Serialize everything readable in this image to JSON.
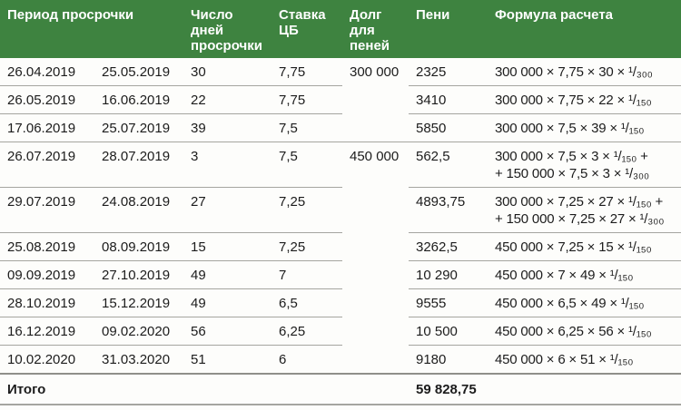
{
  "table": {
    "headers": {
      "period": "Период просрочки",
      "days": "Число\nдней\nпросрочки",
      "rate": "Ставка\nЦБ",
      "debt": "Долг\nдля\nпеней",
      "peni": "Пени",
      "formula": "Формула расчета"
    },
    "rows": [
      {
        "from": "26.04.2019",
        "to": "25.05.2019",
        "days": "30",
        "rate": "7,75",
        "debt": "300 000",
        "peni": "2325",
        "formula": "300 000 × 7,75 × 30 × ¹/₃₀₀"
      },
      {
        "from": "26.05.2019",
        "to": "16.06.2019",
        "days": "22",
        "rate": "7,75",
        "peni": "3410",
        "formula": "300 000 × 7,75 × 22 × ¹/₁₅₀"
      },
      {
        "from": "17.06.2019",
        "to": "25.07.2019",
        "days": "39",
        "rate": "7,5",
        "peni": "5850",
        "formula": "300 000 × 7,5 × 39 × ¹/₁₅₀"
      },
      {
        "from": "26.07.2019",
        "to": "28.07.2019",
        "days": "3",
        "rate": "7,5",
        "debt": "450 000",
        "peni": "562,5",
        "formula": "300 000 × 7,5 × 3 × ¹/₁₅₀ +\n+ 150 000 × 7,5 × 3 × ¹/₃₀₀"
      },
      {
        "from": "29.07.2019",
        "to": "24.08.2019",
        "days": "27",
        "rate": "7,25",
        "peni": "4893,75",
        "formula": "300 000 × 7,25 × 27 × ¹/₁₅₀ +\n+ 150 000 × 7,25 × 27 × ¹/₃₀₀"
      },
      {
        "from": "25.08.2019",
        "to": "08.09.2019",
        "days": "15",
        "rate": "7,25",
        "peni": "3262,5",
        "formula": "450 000 × 7,25 × 15 × ¹/₁₅₀"
      },
      {
        "from": "09.09.2019",
        "to": "27.10.2019",
        "days": "49",
        "rate": "7",
        "peni": "10 290",
        "formula": "450 000 × 7 × 49 × ¹/₁₅₀"
      },
      {
        "from": "28.10.2019",
        "to": "15.12.2019",
        "days": "49",
        "rate": "6,5",
        "peni": "9555",
        "formula": "450 000 × 6,5 × 49 × ¹/₁₅₀"
      },
      {
        "from": "16.12.2019",
        "to": "09.02.2020",
        "days": "56",
        "rate": "6,25",
        "peni": "10 500",
        "formula": "450 000 × 6,25 × 56 × ¹/₁₅₀"
      },
      {
        "from": "10.02.2020",
        "to": "31.03.2020",
        "days": "51",
        "rate": "6",
        "peni": "9180",
        "formula": "450 000 × 6 × 51 × ¹/₁₅₀"
      }
    ],
    "total": {
      "label": "Итого",
      "value": "59 828,75"
    }
  },
  "colors": {
    "header_bg": "#3E8340",
    "header_text": "#FFFFFF",
    "body_bg": "#FDFDFB",
    "text": "#1C1C1C",
    "divider": "#A5A5A0",
    "strong_divider": "#8F8F8A"
  }
}
